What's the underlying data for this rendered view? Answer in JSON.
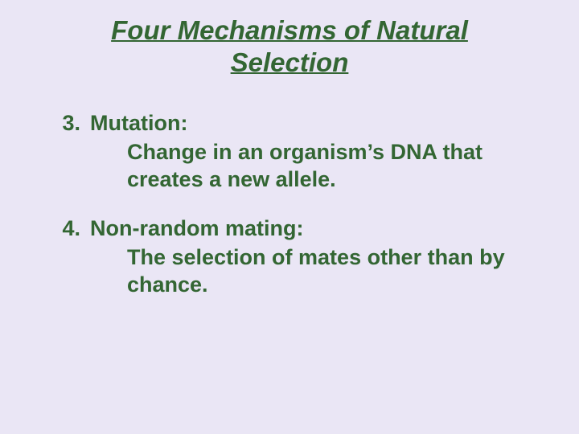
{
  "slide": {
    "title": "Four Mechanisms of Natural Selection",
    "background_color": "#eae6f5",
    "text_color": "#336633",
    "title_fontsize": 33,
    "body_fontsize": 27,
    "font_family": "Arial",
    "items": [
      {
        "number": "3.",
        "heading": "Mutation:",
        "description": "Change in an organism’s DNA that creates a new allele."
      },
      {
        "number": "4.",
        "heading": "Non-random mating:",
        "description": "The selection of mates other than by chance."
      }
    ]
  }
}
